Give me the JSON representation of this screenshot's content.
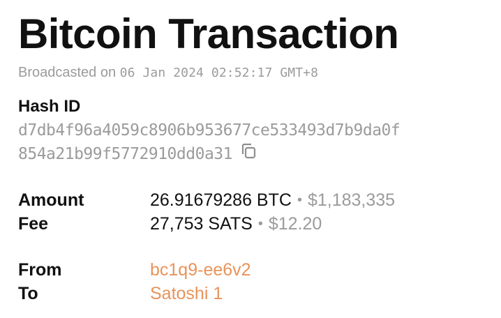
{
  "title": "Bitcoin Transaction",
  "broadcast": {
    "prefix": "Broadcasted on",
    "datetime": "06 Jan 2024 02:52:17 GMT+8"
  },
  "hash": {
    "label": "Hash ID",
    "line1": "d7db4f96a4059c8906b953677ce533493d7b9da0f",
    "line2": "854a21b99f5772910dd0a31",
    "copy_icon": "copy-icon"
  },
  "details": {
    "amount": {
      "label": "Amount",
      "primary": "26.91679286 BTC",
      "separator": "•",
      "secondary": "$1,183,335"
    },
    "fee": {
      "label": "Fee",
      "primary": "27,753 SATS",
      "separator": "•",
      "secondary": "$12.20"
    },
    "from": {
      "label": "From",
      "value": "bc1q9-ee6v2"
    },
    "to": {
      "label": "To",
      "value": "Satoshi 1"
    }
  },
  "colors": {
    "text": "#111111",
    "muted": "#9b9b9b",
    "link": "#e8935a",
    "background": "#ffffff"
  }
}
